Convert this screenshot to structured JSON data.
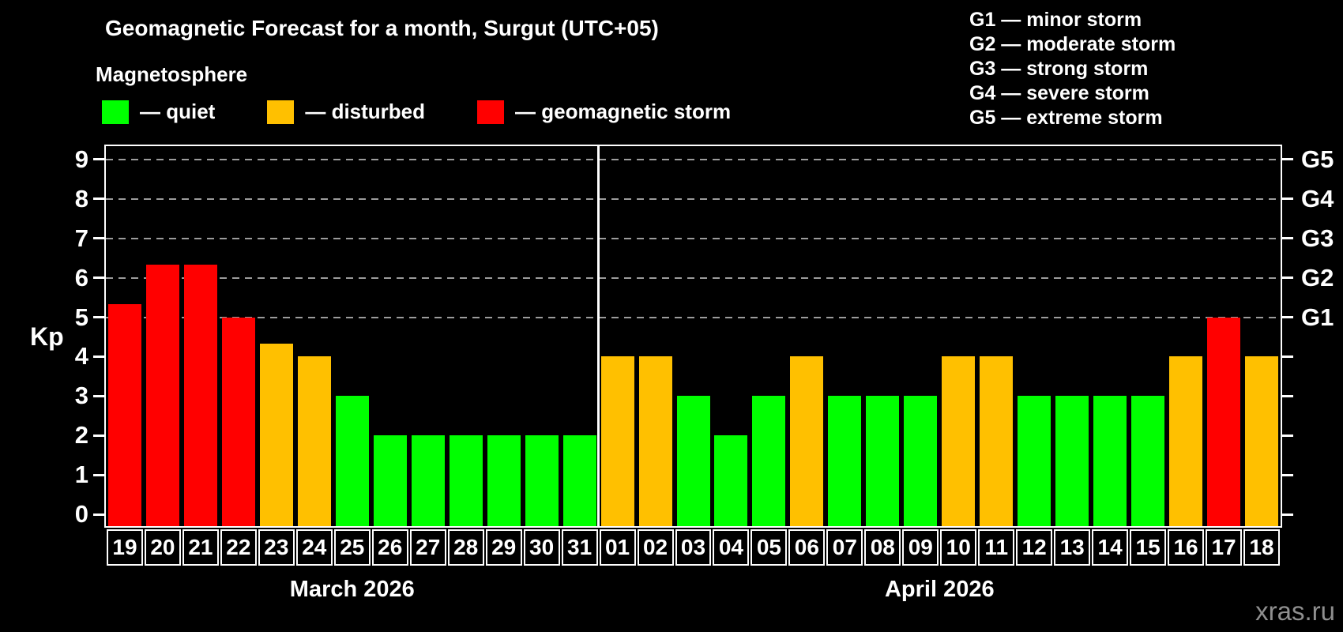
{
  "title": "Geomagnetic Forecast for a month, Surgut (UTC+05)",
  "subtitle": "Magnetosphere",
  "legend": [
    {
      "key": "quiet",
      "label": "— quiet"
    },
    {
      "key": "disturbed",
      "label": "— disturbed"
    },
    {
      "key": "storm",
      "label": "— geomagnetic storm"
    }
  ],
  "g_legend": [
    "G1 — minor storm",
    "G2 — moderate storm",
    "G3 — strong storm",
    "G4 — severe storm",
    "G5 — extreme storm"
  ],
  "watermark": "xras.ru",
  "colors": {
    "quiet": "#00ff00",
    "disturbed": "#ffc000",
    "storm": "#ff0000",
    "axis": "#ffffff",
    "grid": "#9c9c9c",
    "background": "#000000",
    "watermark": "#8f8f8f"
  },
  "chart_data": {
    "type": "bar",
    "title": "Geomagnetic Forecast for a month, Surgut (UTC+05)",
    "ylabel": "Kp",
    "ylim": [
      0,
      9
    ],
    "yticks": [
      0,
      1,
      2,
      3,
      4,
      5,
      6,
      7,
      8,
      9
    ],
    "grid_levels": [
      5,
      6,
      7,
      8,
      9
    ],
    "right_axis": [
      {
        "kp": 5,
        "label": "G1"
      },
      {
        "kp": 6,
        "label": "G2"
      },
      {
        "kp": 7,
        "label": "G3"
      },
      {
        "kp": 8,
        "label": "G4"
      },
      {
        "kp": 9,
        "label": "G5"
      }
    ],
    "months": [
      {
        "label": "March 2026",
        "days": [
          {
            "date": "19",
            "kp": 5.33,
            "level": "storm"
          },
          {
            "date": "20",
            "kp": 6.33,
            "level": "storm"
          },
          {
            "date": "21",
            "kp": 6.33,
            "level": "storm"
          },
          {
            "date": "22",
            "kp": 5,
            "level": "storm"
          },
          {
            "date": "23",
            "kp": 4.33,
            "level": "disturbed"
          },
          {
            "date": "24",
            "kp": 4,
            "level": "disturbed"
          },
          {
            "date": "25",
            "kp": 3,
            "level": "quiet"
          },
          {
            "date": "26",
            "kp": 2,
            "level": "quiet"
          },
          {
            "date": "27",
            "kp": 2,
            "level": "quiet"
          },
          {
            "date": "28",
            "kp": 2,
            "level": "quiet"
          },
          {
            "date": "29",
            "kp": 2,
            "level": "quiet"
          },
          {
            "date": "30",
            "kp": 2,
            "level": "quiet"
          },
          {
            "date": "31",
            "kp": 2,
            "level": "quiet"
          }
        ]
      },
      {
        "label": "April 2026",
        "days": [
          {
            "date": "01",
            "kp": 4,
            "level": "disturbed"
          },
          {
            "date": "02",
            "kp": 4,
            "level": "disturbed"
          },
          {
            "date": "03",
            "kp": 3,
            "level": "quiet"
          },
          {
            "date": "04",
            "kp": 2,
            "level": "quiet"
          },
          {
            "date": "05",
            "kp": 3,
            "level": "quiet"
          },
          {
            "date": "06",
            "kp": 4,
            "level": "disturbed"
          },
          {
            "date": "07",
            "kp": 3,
            "level": "quiet"
          },
          {
            "date": "08",
            "kp": 3,
            "level": "quiet"
          },
          {
            "date": "09",
            "kp": 3,
            "level": "quiet"
          },
          {
            "date": "10",
            "kp": 4,
            "level": "disturbed"
          },
          {
            "date": "11",
            "kp": 4,
            "level": "disturbed"
          },
          {
            "date": "12",
            "kp": 3,
            "level": "quiet"
          },
          {
            "date": "13",
            "kp": 3,
            "level": "quiet"
          },
          {
            "date": "14",
            "kp": 3,
            "level": "quiet"
          },
          {
            "date": "15",
            "kp": 3,
            "level": "quiet"
          },
          {
            "date": "16",
            "kp": 4,
            "level": "disturbed"
          },
          {
            "date": "17",
            "kp": 5,
            "level": "storm"
          },
          {
            "date": "18",
            "kp": 4,
            "level": "disturbed"
          }
        ]
      }
    ]
  }
}
